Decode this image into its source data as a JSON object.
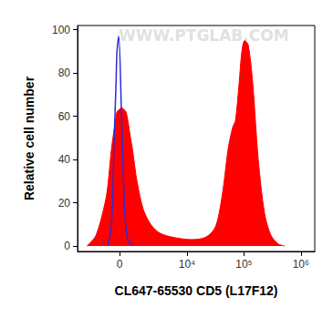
{
  "chart_data": {
    "type": "area",
    "x_label": "CL647-65530 CD5 (L17F12)",
    "y_label": "Relative cell number",
    "annotations": [
      "WWW.PTGLAB.COM"
    ],
    "x": [
      -2300,
      -1460,
      -825,
      -655,
      -445,
      -295,
      -195,
      -145,
      -50,
      100,
      245,
      345,
      445,
      600,
      710,
      1000,
      1460,
      2130,
      3210,
      5730,
      12100,
      21000,
      30400,
      36600,
      44000,
      52900,
      63600,
      71000,
      82200,
      92000,
      102700,
      119000,
      143000,
      178500,
      231000,
      298000,
      401000,
      519000
    ],
    "series": [
      {
        "color": "#ff0000",
        "type": "area",
        "values": [
          0,
          5,
          20,
          28,
          45,
          54,
          60,
          62,
          63,
          64,
          63,
          62,
          58,
          50,
          45,
          30,
          17,
          10,
          6,
          4,
          3,
          4,
          8,
          15,
          28,
          45,
          55,
          58,
          75,
          90,
          95,
          93,
          75,
          40,
          15,
          5,
          1,
          0
        ]
      },
      {
        "color": "#2b2bd6",
        "type": "line",
        "values": [
          null,
          null,
          null,
          0,
          10,
          50,
          75,
          90,
          97,
          60,
          20,
          8,
          3,
          1,
          0,
          null,
          null,
          null,
          null,
          null,
          null,
          null,
          null,
          null,
          null,
          null,
          null,
          null,
          null,
          null,
          null,
          null,
          null,
          null,
          null,
          null,
          null,
          null
        ]
      }
    ],
    "xlim": [
      -3500,
      1750000
    ],
    "xticks": [
      0,
      {
        "value": 10000,
        "label": "10⁴"
      },
      {
        "value": 100000,
        "label": "10⁵"
      },
      {
        "value": 1000000,
        "label": "10⁶"
      }
    ],
    "ylim": [
      -2.5,
      102
    ],
    "yticks": [
      0,
      20,
      40,
      60,
      80,
      100
    ],
    "grid": false
  }
}
